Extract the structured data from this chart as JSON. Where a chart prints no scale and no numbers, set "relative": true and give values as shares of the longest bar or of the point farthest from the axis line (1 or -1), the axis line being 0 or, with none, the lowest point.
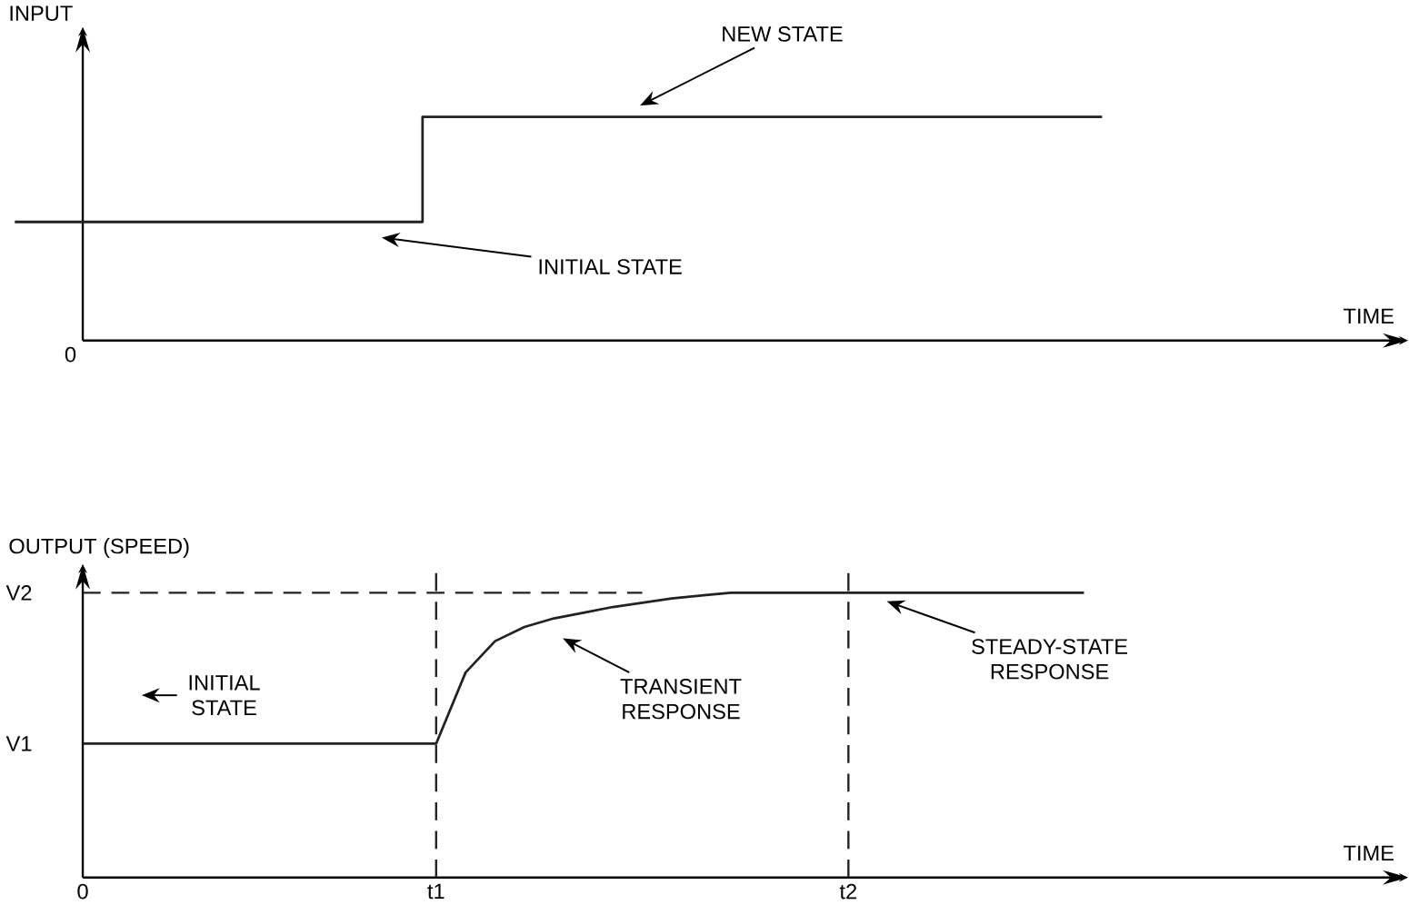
{
  "chart_data": [
    {
      "type": "step",
      "relative": true,
      "ylabel": "INPUT",
      "xlabel": "TIME",
      "categories": [
        null,
        null,
        null,
        null,
        null,
        null,
        null,
        null,
        null,
        null,
        null,
        null,
        null,
        null,
        null,
        null,
        null,
        null,
        null,
        null,
        null
      ],
      "series": [
        {
          "color": "#222222",
          "values": [
            0.53,
            0.53,
            0.53,
            0.53,
            0.53,
            0.53,
            1,
            1,
            1,
            1,
            1,
            1,
            1,
            1,
            1,
            1,
            1,
            null,
            null,
            null,
            null
          ]
        }
      ],
      "annotations": [
        "NEW STATE",
        "INITIAL STATE",
        "0"
      ]
    },
    {
      "type": "line",
      "relative": true,
      "ylabel": "OUTPUT (SPEED)",
      "xlabel": "TIME",
      "categories": [
        "0",
        null,
        null,
        null,
        null,
        null,
        null,
        null,
        null,
        null,
        null,
        null,
        "t1",
        null,
        null,
        null,
        null,
        null,
        null,
        null,
        null,
        null,
        null,
        null,
        null,
        null,
        "t2",
        null,
        null,
        null,
        null,
        null,
        null,
        null,
        null,
        null,
        null,
        null,
        null,
        null,
        null,
        null,
        null,
        null,
        null
      ],
      "series": [
        {
          "color": "#222222",
          "values": [
            0.47,
            0.47,
            0.47,
            0.47,
            0.47,
            0.47,
            0.47,
            0.47,
            0.47,
            0.47,
            0.47,
            0.47,
            0.47,
            0.72,
            0.83,
            0.88,
            0.91,
            0.93,
            0.95,
            0.965,
            0.98,
            0.99,
            1,
            1,
            1,
            1,
            1,
            1,
            1,
            1,
            1,
            1,
            1,
            1,
            1,
            null,
            null,
            null,
            null,
            null,
            null,
            null,
            null,
            null,
            null
          ]
        }
      ],
      "ref_lines": [
        {
          "axis": "x",
          "value": "t1",
          "line_style": "dashed"
        },
        {
          "axis": "x",
          "value": "t2",
          "line_style": "dashed"
        },
        {
          "axis": "y",
          "value": 1,
          "line_style": "dashed"
        }
      ],
      "annotations": [
        "INITIAL STATE",
        "TRANSIENT RESPONSE",
        "STEADY-STATE RESPONSE",
        "V1",
        "V2"
      ]
    }
  ]
}
